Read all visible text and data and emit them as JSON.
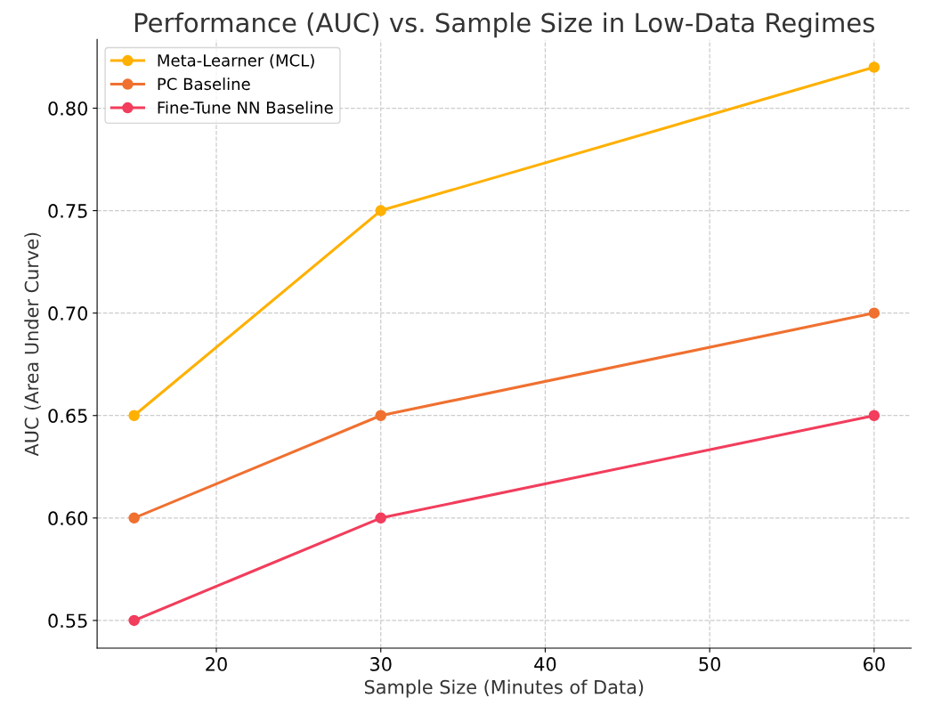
{
  "chart_data": {
    "type": "line",
    "title": "Performance (AUC) vs. Sample Size in Low-Data Regimes",
    "xlabel": "Sample Size (Minutes of Data)",
    "ylabel": "AUC (Area Under Curve)",
    "x": [
      15,
      30,
      60
    ],
    "series": [
      {
        "name": "Meta-Learner (MCL)",
        "color": "#ffb000",
        "values": [
          0.65,
          0.75,
          0.82
        ]
      },
      {
        "name": "PC Baseline",
        "color": "#f07030",
        "values": [
          0.6,
          0.65,
          0.7
        ]
      },
      {
        "name": "Fine-Tune NN Baseline",
        "color": "#f23d5c",
        "values": [
          0.55,
          0.6,
          0.65
        ]
      }
    ],
    "xlim": [
      12.75,
      62.25
    ],
    "xticks": [
      20,
      30,
      40,
      50,
      60
    ],
    "ylim": [
      0.5365,
      0.8335
    ],
    "yticks": [
      {
        "value": 0.55,
        "label": "0.55"
      },
      {
        "value": 0.6,
        "label": "0.60"
      },
      {
        "value": 0.65,
        "label": "0.65"
      },
      {
        "value": 0.7,
        "label": "0.70"
      },
      {
        "value": 0.75,
        "label": "0.75"
      },
      {
        "value": 0.8,
        "label": "0.80"
      }
    ],
    "grid": true,
    "legend": "top left",
    "marker": "circle",
    "line_style": "solid"
  }
}
